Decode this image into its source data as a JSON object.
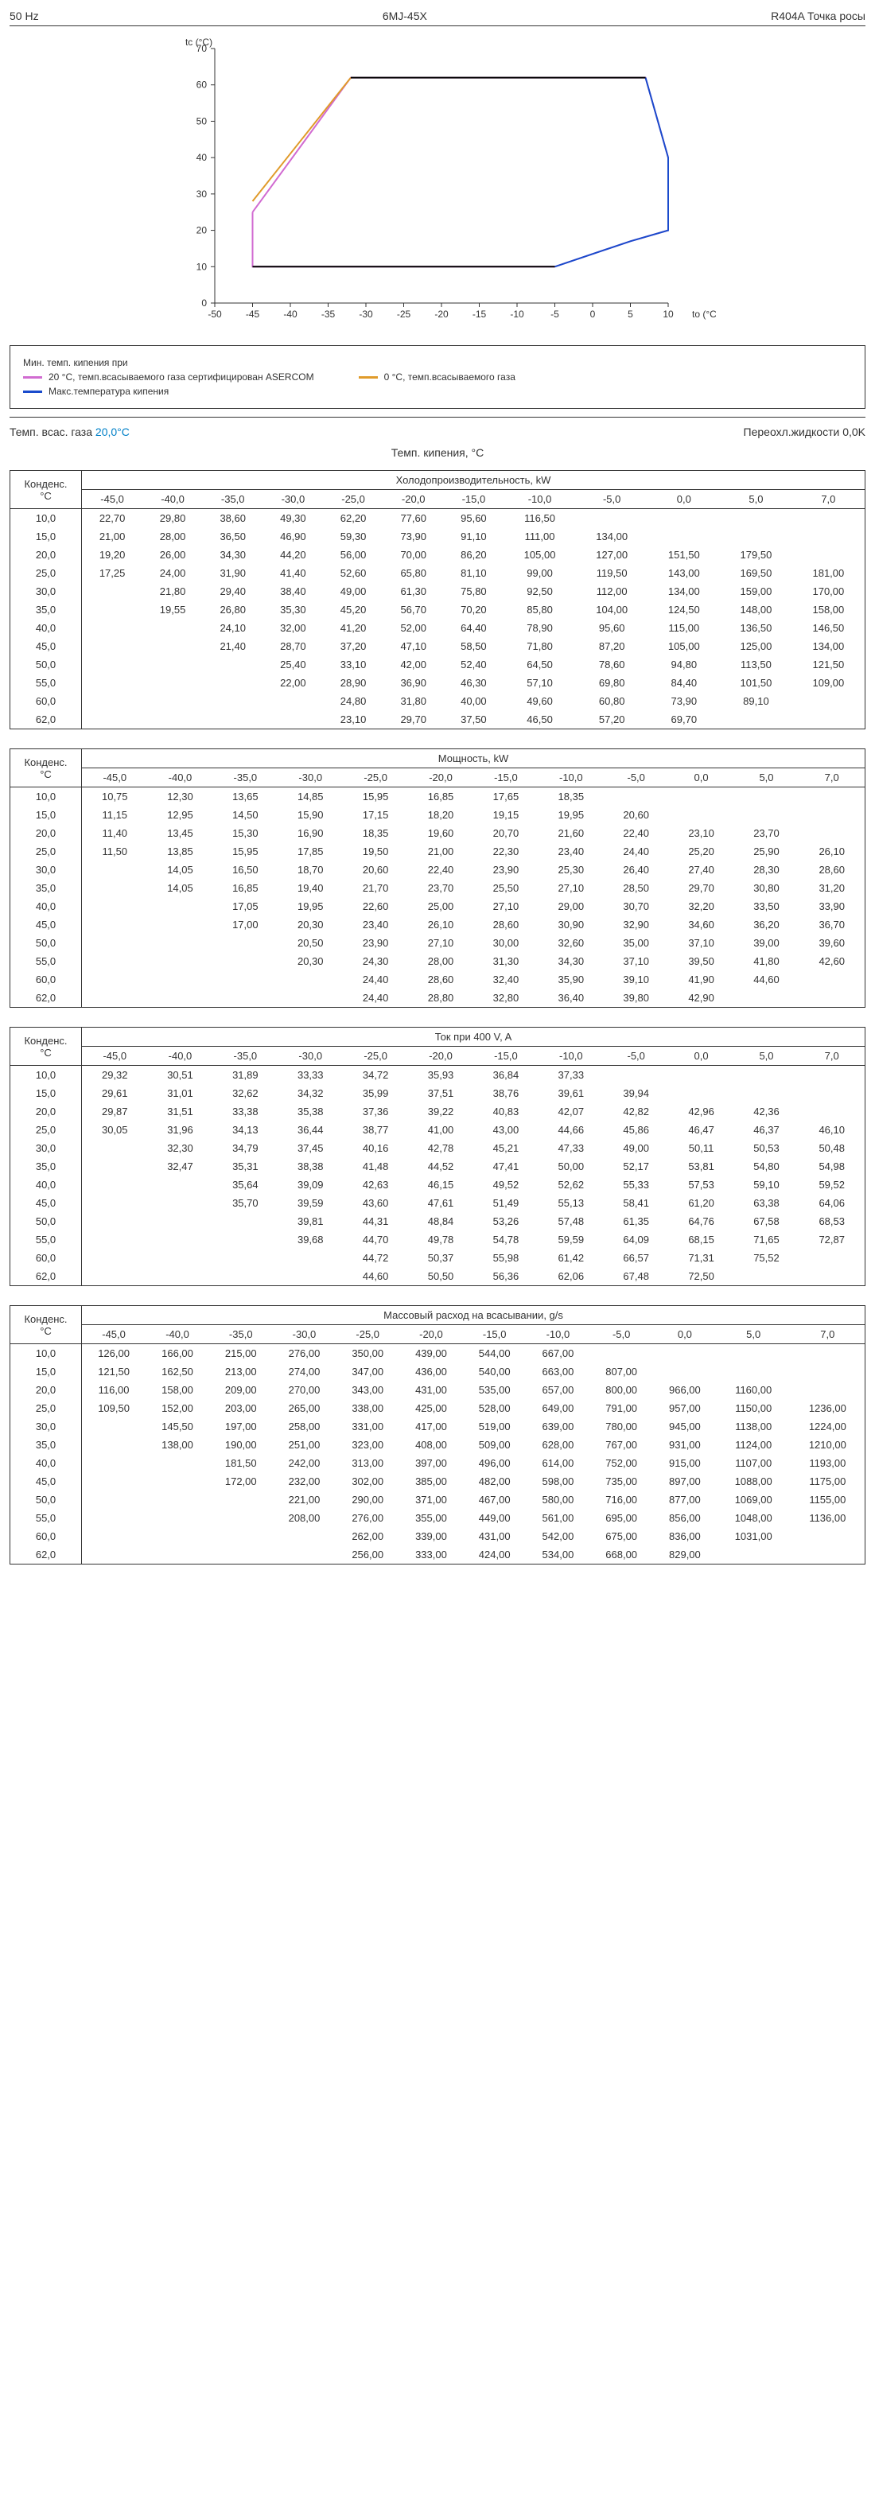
{
  "header": {
    "left": "50 Hz",
    "center": "6MJ-45X",
    "right": "R404A Точка росы"
  },
  "chart": {
    "type": "line",
    "x_label": "to (°C)",
    "y_label": "tc (°C)",
    "xlim": [
      -50,
      10
    ],
    "ylim": [
      0,
      70
    ],
    "xtick_step": 5,
    "ytick_step": 10,
    "background_color": "#ffffff",
    "axis_color": "#333333",
    "series": [
      {
        "name": "20C_asercom",
        "color": "#d16bd1",
        "width": 2,
        "points": [
          [
            -45,
            25
          ],
          [
            -32,
            62
          ],
          [
            7,
            62
          ],
          [
            10,
            40
          ],
          [
            10,
            20
          ],
          [
            5,
            17
          ],
          [
            -5,
            10
          ],
          [
            -45,
            10
          ],
          [
            -45,
            25
          ]
        ]
      },
      {
        "name": "0C",
        "color": "#e09b2b",
        "width": 2,
        "points": [
          [
            -45,
            28
          ],
          [
            -32,
            62
          ]
        ]
      },
      {
        "name": "max",
        "color": "#1a4bcc",
        "width": 2,
        "points": [
          [
            -5,
            10
          ],
          [
            5,
            17
          ],
          [
            10,
            20
          ],
          [
            10,
            40
          ],
          [
            7,
            62
          ]
        ]
      },
      {
        "name": "outer_black",
        "color": "#000000",
        "width": 2,
        "points": [
          [
            -45,
            10
          ],
          [
            -5,
            10
          ]
        ]
      },
      {
        "name": "outer_black2",
        "color": "#000000",
        "width": 2,
        "points": [
          [
            -32,
            62
          ],
          [
            7,
            62
          ]
        ]
      }
    ]
  },
  "legend": {
    "intro": "Мин. темп. кипения при",
    "items": [
      {
        "swatch": "violet",
        "text": "20 °C, темп.всасываемого газа сертифицирован ASERCOM"
      },
      {
        "swatch": "orange",
        "text": "0 °C, темп.всасываемого газа"
      },
      {
        "swatch": "blue",
        "text": "Макс.температура кипения"
      }
    ]
  },
  "conditions": {
    "left_label": "Темп. всас. газа ",
    "left_value": "20,0°C",
    "right": "Переохл.жидкости 0,0K"
  },
  "columns_header": "Темп. кипения, °C",
  "evap_temps": [
    "-45,0",
    "-40,0",
    "-35,0",
    "-30,0",
    "-25,0",
    "-20,0",
    "-15,0",
    "-10,0",
    "-5,0",
    "0,0",
    "5,0",
    "7,0"
  ],
  "cond_temps": [
    "10,0",
    "15,0",
    "20,0",
    "25,0",
    "30,0",
    "35,0",
    "40,0",
    "45,0",
    "50,0",
    "55,0",
    "60,0",
    "62,0"
  ],
  "tables": [
    {
      "title": "Холодопроизводительность, kW",
      "left_label": "Конденс.\n°C",
      "rows": [
        [
          "22,70",
          "29,80",
          "38,60",
          "49,30",
          "62,20",
          "77,60",
          "95,60",
          "116,50",
          "",
          "",
          "",
          ""
        ],
        [
          "21,00",
          "28,00",
          "36,50",
          "46,90",
          "59,30",
          "73,90",
          "91,10",
          "111,00",
          "134,00",
          "",
          "",
          ""
        ],
        [
          "19,20",
          "26,00",
          "34,30",
          "44,20",
          "56,00",
          "70,00",
          "86,20",
          "105,00",
          "127,00",
          "151,50",
          "179,50",
          ""
        ],
        [
          "17,25",
          "24,00",
          "31,90",
          "41,40",
          "52,60",
          "65,80",
          "81,10",
          "99,00",
          "119,50",
          "143,00",
          "169,50",
          "181,00"
        ],
        [
          "",
          "21,80",
          "29,40",
          "38,40",
          "49,00",
          "61,30",
          "75,80",
          "92,50",
          "112,00",
          "134,00",
          "159,00",
          "170,00"
        ],
        [
          "",
          "19,55",
          "26,80",
          "35,30",
          "45,20",
          "56,70",
          "70,20",
          "85,80",
          "104,00",
          "124,50",
          "148,00",
          "158,00"
        ],
        [
          "",
          "",
          "24,10",
          "32,00",
          "41,20",
          "52,00",
          "64,40",
          "78,90",
          "95,60",
          "115,00",
          "136,50",
          "146,50"
        ],
        [
          "",
          "",
          "21,40",
          "28,70",
          "37,20",
          "47,10",
          "58,50",
          "71,80",
          "87,20",
          "105,00",
          "125,00",
          "134,00"
        ],
        [
          "",
          "",
          "",
          "25,40",
          "33,10",
          "42,00",
          "52,40",
          "64,50",
          "78,60",
          "94,80",
          "113,50",
          "121,50"
        ],
        [
          "",
          "",
          "",
          "22,00",
          "28,90",
          "36,90",
          "46,30",
          "57,10",
          "69,80",
          "84,40",
          "101,50",
          "109,00"
        ],
        [
          "",
          "",
          "",
          "",
          "24,80",
          "31,80",
          "40,00",
          "49,60",
          "60,80",
          "73,90",
          "89,10",
          ""
        ],
        [
          "",
          "",
          "",
          "",
          "23,10",
          "29,70",
          "37,50",
          "46,50",
          "57,20",
          "69,70",
          "",
          ""
        ]
      ]
    },
    {
      "title": "Мощность, kW",
      "left_label": "Конденс.\n°C",
      "rows": [
        [
          "10,75",
          "12,30",
          "13,65",
          "14,85",
          "15,95",
          "16,85",
          "17,65",
          "18,35",
          "",
          "",
          "",
          ""
        ],
        [
          "11,15",
          "12,95",
          "14,50",
          "15,90",
          "17,15",
          "18,20",
          "19,15",
          "19,95",
          "20,60",
          "",
          "",
          ""
        ],
        [
          "11,40",
          "13,45",
          "15,30",
          "16,90",
          "18,35",
          "19,60",
          "20,70",
          "21,60",
          "22,40",
          "23,10",
          "23,70",
          ""
        ],
        [
          "11,50",
          "13,85",
          "15,95",
          "17,85",
          "19,50",
          "21,00",
          "22,30",
          "23,40",
          "24,40",
          "25,20",
          "25,90",
          "26,10"
        ],
        [
          "",
          "14,05",
          "16,50",
          "18,70",
          "20,60",
          "22,40",
          "23,90",
          "25,30",
          "26,40",
          "27,40",
          "28,30",
          "28,60"
        ],
        [
          "",
          "14,05",
          "16,85",
          "19,40",
          "21,70",
          "23,70",
          "25,50",
          "27,10",
          "28,50",
          "29,70",
          "30,80",
          "31,20"
        ],
        [
          "",
          "",
          "17,05",
          "19,95",
          "22,60",
          "25,00",
          "27,10",
          "29,00",
          "30,70",
          "32,20",
          "33,50",
          "33,90"
        ],
        [
          "",
          "",
          "17,00",
          "20,30",
          "23,40",
          "26,10",
          "28,60",
          "30,90",
          "32,90",
          "34,60",
          "36,20",
          "36,70"
        ],
        [
          "",
          "",
          "",
          "20,50",
          "23,90",
          "27,10",
          "30,00",
          "32,60",
          "35,00",
          "37,10",
          "39,00",
          "39,60"
        ],
        [
          "",
          "",
          "",
          "20,30",
          "24,30",
          "28,00",
          "31,30",
          "34,30",
          "37,10",
          "39,50",
          "41,80",
          "42,60"
        ],
        [
          "",
          "",
          "",
          "",
          "24,40",
          "28,60",
          "32,40",
          "35,90",
          "39,10",
          "41,90",
          "44,60",
          ""
        ],
        [
          "",
          "",
          "",
          "",
          "24,40",
          "28,80",
          "32,80",
          "36,40",
          "39,80",
          "42,90",
          "",
          ""
        ]
      ]
    },
    {
      "title": "Ток при 400 V, A",
      "left_label": "Конденс.\n°C",
      "rows": [
        [
          "29,32",
          "30,51",
          "31,89",
          "33,33",
          "34,72",
          "35,93",
          "36,84",
          "37,33",
          "",
          "",
          "",
          ""
        ],
        [
          "29,61",
          "31,01",
          "32,62",
          "34,32",
          "35,99",
          "37,51",
          "38,76",
          "39,61",
          "39,94",
          "",
          "",
          ""
        ],
        [
          "29,87",
          "31,51",
          "33,38",
          "35,38",
          "37,36",
          "39,22",
          "40,83",
          "42,07",
          "42,82",
          "42,96",
          "42,36",
          ""
        ],
        [
          "30,05",
          "31,96",
          "34,13",
          "36,44",
          "38,77",
          "41,00",
          "43,00",
          "44,66",
          "45,86",
          "46,47",
          "46,37",
          "46,10"
        ],
        [
          "",
          "32,30",
          "34,79",
          "37,45",
          "40,16",
          "42,78",
          "45,21",
          "47,33",
          "49,00",
          "50,11",
          "50,53",
          "50,48"
        ],
        [
          "",
          "32,47",
          "35,31",
          "38,38",
          "41,48",
          "44,52",
          "47,41",
          "50,00",
          "52,17",
          "53,81",
          "54,80",
          "54,98"
        ],
        [
          "",
          "",
          "35,64",
          "39,09",
          "42,63",
          "46,15",
          "49,52",
          "52,62",
          "55,33",
          "57,53",
          "59,10",
          "59,52"
        ],
        [
          "",
          "",
          "35,70",
          "39,59",
          "43,60",
          "47,61",
          "51,49",
          "55,13",
          "58,41",
          "61,20",
          "63,38",
          "64,06"
        ],
        [
          "",
          "",
          "",
          "39,81",
          "44,31",
          "48,84",
          "53,26",
          "57,48",
          "61,35",
          "64,76",
          "67,58",
          "68,53"
        ],
        [
          "",
          "",
          "",
          "39,68",
          "44,70",
          "49,78",
          "54,78",
          "59,59",
          "64,09",
          "68,15",
          "71,65",
          "72,87"
        ],
        [
          "",
          "",
          "",
          "",
          "44,72",
          "50,37",
          "55,98",
          "61,42",
          "66,57",
          "71,31",
          "75,52",
          ""
        ],
        [
          "",
          "",
          "",
          "",
          "44,60",
          "50,50",
          "56,36",
          "62,06",
          "67,48",
          "72,50",
          "",
          ""
        ]
      ]
    },
    {
      "title": "Массовый расход на всасывании, g/s",
      "left_label": "Конденс.\n°C",
      "rows": [
        [
          "126,00",
          "166,00",
          "215,00",
          "276,00",
          "350,00",
          "439,00",
          "544,00",
          "667,00",
          "",
          "",
          "",
          ""
        ],
        [
          "121,50",
          "162,50",
          "213,00",
          "274,00",
          "347,00",
          "436,00",
          "540,00",
          "663,00",
          "807,00",
          "",
          "",
          ""
        ],
        [
          "116,00",
          "158,00",
          "209,00",
          "270,00",
          "343,00",
          "431,00",
          "535,00",
          "657,00",
          "800,00",
          "966,00",
          "1160,00",
          ""
        ],
        [
          "109,50",
          "152,00",
          "203,00",
          "265,00",
          "338,00",
          "425,00",
          "528,00",
          "649,00",
          "791,00",
          "957,00",
          "1150,00",
          "1236,00"
        ],
        [
          "",
          "145,50",
          "197,00",
          "258,00",
          "331,00",
          "417,00",
          "519,00",
          "639,00",
          "780,00",
          "945,00",
          "1138,00",
          "1224,00"
        ],
        [
          "",
          "138,00",
          "190,00",
          "251,00",
          "323,00",
          "408,00",
          "509,00",
          "628,00",
          "767,00",
          "931,00",
          "1124,00",
          "1210,00"
        ],
        [
          "",
          "",
          "181,50",
          "242,00",
          "313,00",
          "397,00",
          "496,00",
          "614,00",
          "752,00",
          "915,00",
          "1107,00",
          "1193,00"
        ],
        [
          "",
          "",
          "172,00",
          "232,00",
          "302,00",
          "385,00",
          "482,00",
          "598,00",
          "735,00",
          "897,00",
          "1088,00",
          "1175,00"
        ],
        [
          "",
          "",
          "",
          "221,00",
          "290,00",
          "371,00",
          "467,00",
          "580,00",
          "716,00",
          "877,00",
          "1069,00",
          "1155,00"
        ],
        [
          "",
          "",
          "",
          "208,00",
          "276,00",
          "355,00",
          "449,00",
          "561,00",
          "695,00",
          "856,00",
          "1048,00",
          "1136,00"
        ],
        [
          "",
          "",
          "",
          "",
          "262,00",
          "339,00",
          "431,00",
          "542,00",
          "675,00",
          "836,00",
          "1031,00",
          ""
        ],
        [
          "",
          "",
          "",
          "",
          "256,00",
          "333,00",
          "424,00",
          "534,00",
          "668,00",
          "829,00",
          "",
          ""
        ]
      ]
    }
  ]
}
